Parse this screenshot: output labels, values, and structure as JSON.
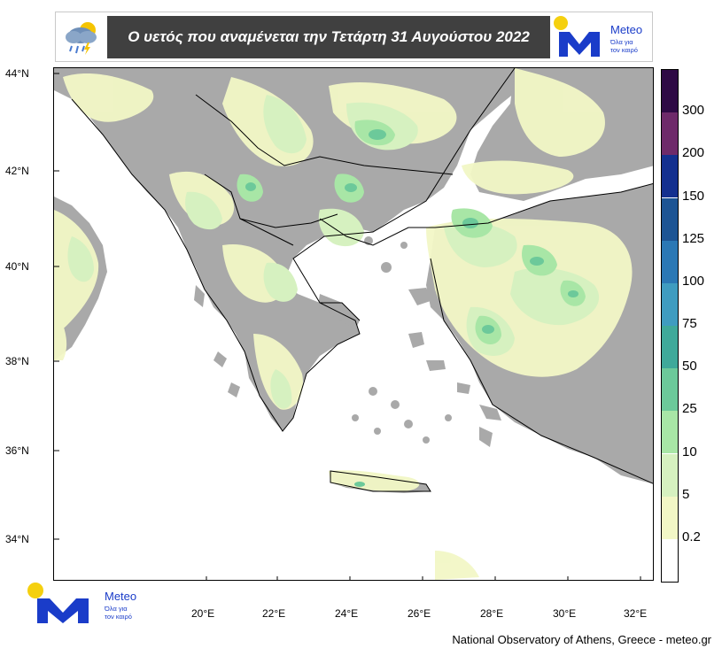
{
  "header": {
    "title": "Ο υετός που αναμένεται την Τετάρτη 31 Αυγούστου 2022"
  },
  "logo": {
    "name": "Meteo",
    "tagline_line1": "Όλα για",
    "tagline_line2": "τον καιρό",
    "brand_color": "#1a3cc9",
    "sun_color": "#f5d00f"
  },
  "map": {
    "lat_labels": [
      "44°N",
      "42°N",
      "40°N",
      "38°N",
      "36°N",
      "34°N"
    ],
    "lon_labels": [
      "20°E",
      "22°E",
      "24°E",
      "26°E",
      "28°E",
      "30°E",
      "32°E"
    ],
    "land_no_rain_color": "#a9a9a9",
    "sea_color": "#ffffff"
  },
  "colorbar": {
    "levels": [
      "0.2",
      "5",
      "10",
      "25",
      "50",
      "75",
      "100",
      "125",
      "150",
      "200",
      "300"
    ],
    "colors": [
      "#ffffff",
      "#f2f7c6",
      "#d6f1c0",
      "#a8e6a6",
      "#6cc99a",
      "#3fa99a",
      "#3f9cc0",
      "#2b78b5",
      "#1c5494",
      "#14308f",
      "#6e2a6a",
      "#2e0a45"
    ]
  },
  "credit": "National Observatory of Athens, Greece - meteo.gr"
}
